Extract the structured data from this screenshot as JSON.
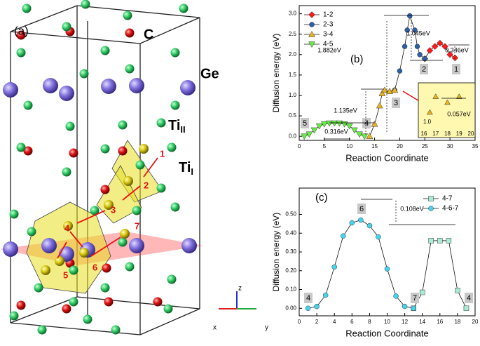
{
  "structure": {
    "label": "(a)",
    "species": [
      "C",
      "Ge"
    ],
    "ti": [
      {
        "base": "Ti",
        "sub": "II"
      },
      {
        "base": "Ti",
        "sub": "I"
      }
    ],
    "sites": [
      "1",
      "2",
      "3",
      "4",
      "5",
      "6",
      "7"
    ],
    "axes": [
      "z",
      "x",
      "y"
    ]
  },
  "chart_data": [
    {
      "type": "line",
      "panel": "(b)",
      "x_label": "Reaction Coordinate",
      "y_label": "Diffusion energy (eV)",
      "xlim": [
        0,
        35
      ],
      "ylim": [
        -0.1,
        3.2
      ],
      "xticks": [
        0,
        5,
        10,
        15,
        20,
        25,
        30,
        35
      ],
      "yticks": [
        {
          "value": 0.0,
          "label": "0.0"
        },
        0.5,
        {
          "value": 1.0,
          "label": "1.0"
        },
        1.5,
        {
          "value": 2.0,
          "label": "2.0"
        },
        2.5,
        {
          "value": 3.0,
          "label": "3.0"
        }
      ],
      "legend": "upper left",
      "series": [
        {
          "name": "1-2",
          "color": "#ff1a1a",
          "marker": "diamond",
          "x": [
            25,
            26,
            27,
            28,
            29,
            30,
            31
          ],
          "values": [
            1.9,
            2.1,
            2.2,
            2.28,
            2.2,
            2.0,
            1.92
          ]
        },
        {
          "name": "2-3",
          "color": "#2c5fa8",
          "marker": "circle",
          "x": [
            19,
            20,
            21,
            21.5,
            22,
            23,
            23.5,
            24,
            25
          ],
          "values": [
            1.13,
            1.6,
            2.2,
            2.6,
            2.95,
            2.6,
            2.2,
            2.0,
            1.9
          ]
        },
        {
          "name": "3-4",
          "color": "#e8b422",
          "marker": "triangle-up",
          "x": [
            14,
            15,
            16,
            16.5,
            17,
            18,
            19
          ],
          "values": [
            0.0,
            0.3,
            0.75,
            1.05,
            1.13,
            1.1,
            1.13
          ]
        },
        {
          "name": "4-5",
          "color": "#66ee44",
          "marker": "triangle-down",
          "x": [
            1,
            2,
            3,
            4,
            5,
            6,
            7,
            8,
            9,
            10,
            11,
            12,
            13
          ],
          "values": [
            0.0,
            0.05,
            0.15,
            0.25,
            0.3,
            0.32,
            0.32,
            0.32,
            0.3,
            0.25,
            0.15,
            0.05,
            0.0
          ]
        }
      ],
      "annotations": [
        "1.882eV",
        "1.045eV",
        "0.346eV",
        "1.135eV",
        "0.316eV"
      ],
      "site_labels": [
        "5",
        "4",
        "3",
        "2",
        "1"
      ],
      "inset": {
        "xlim": [
          16,
          20
        ],
        "ylim": [
          0.95,
          1.2
        ],
        "xticks": [
          16,
          17,
          18,
          19,
          20
        ],
        "yticks": [
          {
            "value": 1.0,
            "label": "1.0"
          }
        ],
        "annotation": "0.057eV"
      }
    },
    {
      "type": "line",
      "panel": "(c)",
      "x_label": "Reaction Coordinate",
      "y_label": "Diffusion energy (eV)",
      "xlim": [
        0,
        20
      ],
      "ylim": [
        -0.04,
        0.64
      ],
      "xticks": [
        0,
        2,
        4,
        6,
        8,
        10,
        12,
        14,
        16,
        18,
        20
      ],
      "yticks": [
        {
          "value": 0.0,
          "label": "0.00"
        },
        {
          "value": 0.1,
          "label": "0.10"
        },
        {
          "value": 0.2,
          "label": "0.20"
        },
        {
          "value": 0.3,
          "label": "0.30"
        },
        {
          "value": 0.4,
          "label": "0.40"
        },
        {
          "value": 0.5,
          "label": "0.50"
        }
      ],
      "legend": "upper right",
      "series": [
        {
          "name": "4-7",
          "color": "#a8ecd8",
          "marker": "square",
          "x": [
            13,
            14,
            15,
            16,
            17,
            18,
            19
          ],
          "values": [
            0.0,
            0.085,
            0.36,
            0.36,
            0.36,
            0.095,
            0.0
          ]
        },
        {
          "name": "4-6-7",
          "color": "#44d4ee",
          "marker": "circle",
          "x": [
            1,
            2,
            3,
            4,
            5,
            6,
            7,
            8,
            9,
            10,
            11,
            12,
            13
          ],
          "values": [
            0.0,
            0.01,
            0.07,
            0.22,
            0.385,
            0.455,
            0.47,
            0.44,
            0.38,
            0.21,
            0.065,
            0.01,
            0.0
          ]
        }
      ],
      "annotations": [
        "0.108eV"
      ],
      "site_labels": [
        "6",
        "4",
        "7",
        "4"
      ]
    }
  ]
}
